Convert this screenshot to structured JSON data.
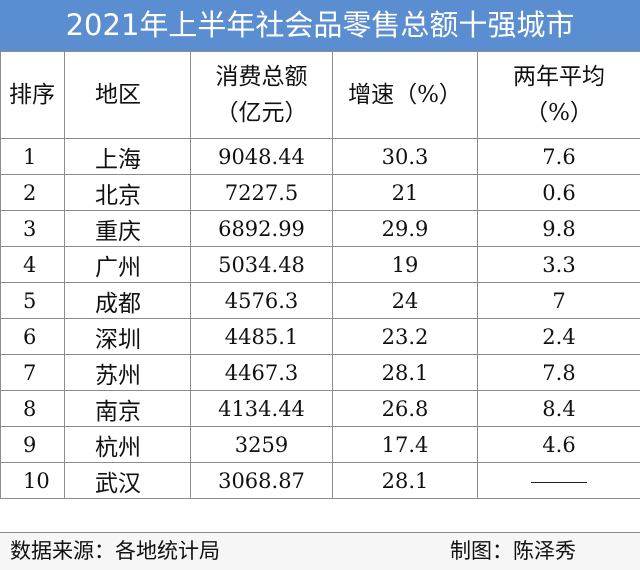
{
  "title": "2021年上半年社会品零售总额十强城市",
  "header": {
    "rank": "排序",
    "region": "地区",
    "total_line1": "消费总额",
    "total_line2": "（亿元）",
    "growth": "增速（%）",
    "avg_line1": "两年平均",
    "avg_line2": "（%）"
  },
  "rows": [
    {
      "rank": "1",
      "region": "上海",
      "total": "9048.44",
      "growth": "30.3",
      "avg": "7.6"
    },
    {
      "rank": "2",
      "region": "北京",
      "total": "7227.5",
      "growth": "21",
      "avg": "0.6"
    },
    {
      "rank": "3",
      "region": "重庆",
      "total": "6892.99",
      "growth": "29.9",
      "avg": "9.8"
    },
    {
      "rank": "4",
      "region": "广州",
      "total": "5034.48",
      "growth": "19",
      "avg": "3.3"
    },
    {
      "rank": "5",
      "region": "成都",
      "total": "4576.3",
      "growth": "24",
      "avg": "7"
    },
    {
      "rank": "6",
      "region": "深圳",
      "total": "4485.1",
      "growth": "23.2",
      "avg": "2.4"
    },
    {
      "rank": "7",
      "region": "苏州",
      "total": "4467.3",
      "growth": "28.1",
      "avg": "7.8"
    },
    {
      "rank": "8",
      "region": "南京",
      "total": "4134.44",
      "growth": "26.8",
      "avg": "8.4"
    },
    {
      "rank": "9",
      "region": "杭州",
      "total": "3259",
      "growth": "17.4",
      "avg": "4.6"
    },
    {
      "rank": "10",
      "region": "武汉",
      "total": "3068.87",
      "growth": "28.1",
      "avg": ""
    }
  ],
  "footer": {
    "source": "数据来源：各地统计局",
    "author": "制图：陈泽秀"
  }
}
